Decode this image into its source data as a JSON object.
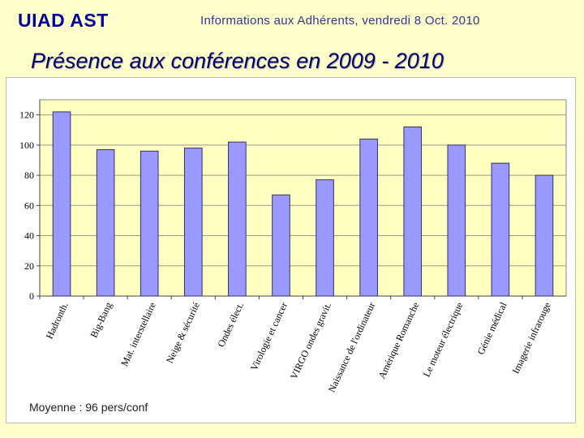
{
  "header": {
    "org": "UIAD AST",
    "subtitle": "Informations aux Adhérents, vendredi 8 Oct. 2010"
  },
  "title": "Présence aux conférences en 2009 - 2010",
  "footnote": "Moyenne : 96 pers/conf",
  "colors": {
    "bar": "#9999ff",
    "plot_bg": "#ffffc0",
    "grid": "#999999"
  },
  "chart_data": {
    "type": "bar",
    "title": "Présence aux conférences en 2009 - 2010",
    "xlabel": "",
    "ylabel": "",
    "ylim": [
      0,
      130
    ],
    "yticks": [
      0,
      20,
      40,
      60,
      80,
      100,
      120
    ],
    "grid": true,
    "categories": [
      "Hadronth.",
      "Big-Bang",
      "Mat. interstellaire",
      "Neige & sécurité",
      "Ondes élect.",
      "Virologie et cancer",
      "VIRGO ondes gravit.",
      "Naissance de l'ordinateur",
      "Amérique Romanche",
      "Le moteur électrique",
      "Génie médical",
      "Imagerie infrarouge"
    ],
    "values": [
      122,
      97,
      96,
      98,
      102,
      67,
      77,
      104,
      112,
      100,
      88,
      80
    ]
  }
}
